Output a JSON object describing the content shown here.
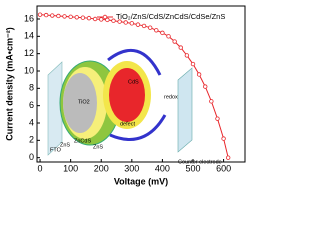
{
  "chart_data": {
    "type": "line",
    "xlabel": "Voltage (mV)",
    "ylabel": "Current density (mA•cm⁻²)",
    "x": [
      0,
      20,
      40,
      60,
      80,
      100,
      120,
      140,
      160,
      180,
      200,
      220,
      240,
      260,
      280,
      300,
      320,
      340,
      360,
      380,
      400,
      420,
      440,
      460,
      480,
      500,
      520,
      540,
      560,
      580,
      600,
      615
    ],
    "series": [
      {
        "name": "TiO₂/ZnS/CdS/ZnCdS/CdSe/ZnS",
        "color": "#e8262b",
        "values": [
          16.5,
          16.45,
          16.4,
          16.35,
          16.3,
          16.25,
          16.2,
          16.15,
          16.1,
          16.0,
          15.95,
          15.9,
          15.8,
          15.7,
          15.6,
          15.5,
          15.35,
          15.2,
          15.0,
          14.7,
          14.4,
          14.0,
          13.4,
          12.7,
          11.8,
          10.8,
          9.6,
          8.2,
          6.5,
          4.5,
          2.2,
          0
        ]
      }
    ],
    "xlim": [
      -10,
      670
    ],
    "xticks": [
      0,
      100,
      200,
      300,
      400,
      500,
      600
    ],
    "ylim": [
      -0.5,
      17.5
    ],
    "yticks": [
      0,
      2,
      4,
      6,
      8,
      10,
      12,
      14,
      16
    ],
    "legend": "upper right",
    "annotations": [
      "FTO",
      "TiO2",
      "ZnS",
      "ZnCdS",
      "ZnS",
      "CdS",
      "defect",
      "redox",
      "Counter electrode"
    ]
  }
}
